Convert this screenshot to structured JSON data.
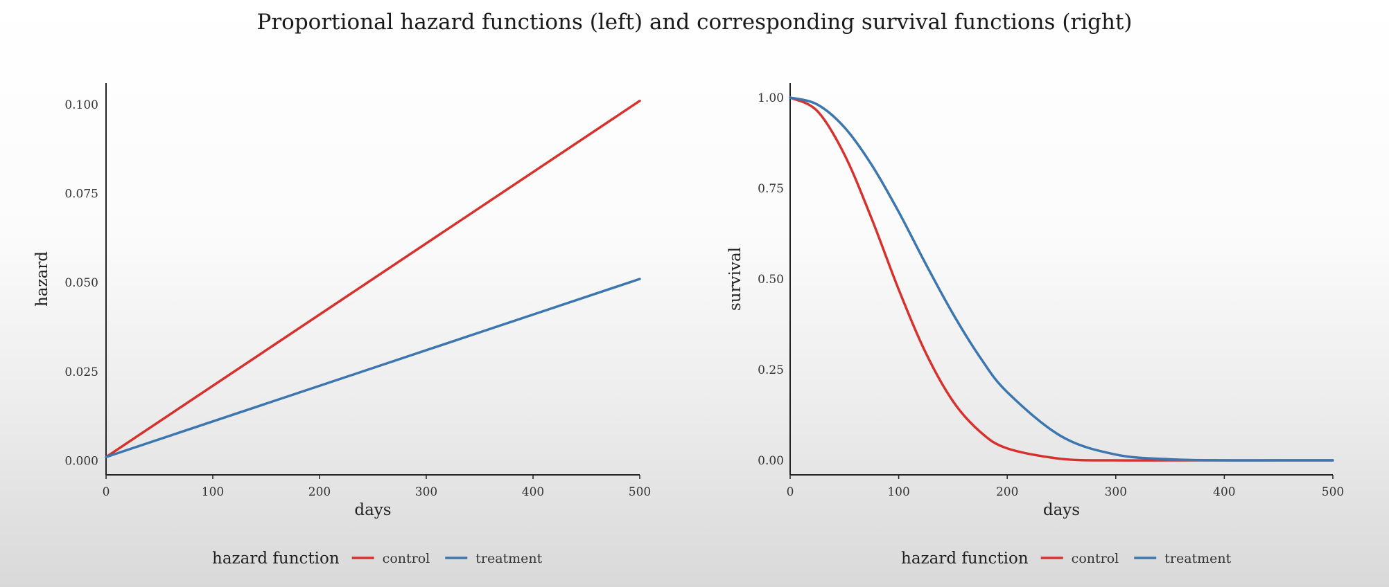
{
  "title": "Proportional hazard functions (left) and corresponding survival functions (right)",
  "colors": {
    "control": "#d7312e",
    "treatment": "#3b76b0",
    "axis": "#222222"
  },
  "chart_data": [
    {
      "type": "line",
      "xlabel": "days",
      "ylabel": "hazard",
      "xlim": [
        0,
        500
      ],
      "ylim": [
        -0.004,
        0.106
      ],
      "xticks": [
        0,
        100,
        200,
        300,
        400,
        500
      ],
      "xtick_labels": [
        "0",
        "100",
        "200",
        "300",
        "400",
        "500"
      ],
      "yticks": [
        0,
        0.025,
        0.05,
        0.075,
        0.1
      ],
      "ytick_labels": [
        "0.000",
        "0.025",
        "0.050",
        "0.075",
        "0.100"
      ],
      "grid": false,
      "legend_position": "bottom",
      "legend_title": "hazard function",
      "series": [
        {
          "name": "control",
          "x": [
            0,
            500
          ],
          "y": [
            0.001,
            0.101
          ]
        },
        {
          "name": "treatment",
          "x": [
            0,
            500
          ],
          "y": [
            0.001,
            0.051
          ]
        }
      ]
    },
    {
      "type": "line",
      "xlabel": "days",
      "ylabel": "survival",
      "xlim": [
        0,
        500
      ],
      "ylim": [
        -0.04,
        1.04
      ],
      "xticks": [
        0,
        100,
        200,
        300,
        400,
        500
      ],
      "xtick_labels": [
        "0",
        "100",
        "200",
        "300",
        "400",
        "500"
      ],
      "yticks": [
        0,
        0.25,
        0.5,
        0.75,
        1.0
      ],
      "ytick_labels": [
        "0.00",
        "0.25",
        "0.50",
        "0.75",
        "1.00"
      ],
      "grid": false,
      "legend_position": "bottom",
      "legend_title": "hazard function",
      "series": [
        {
          "name": "control",
          "x": [
            0,
            25,
            50,
            75,
            100,
            125,
            150,
            175,
            200,
            250,
            300,
            350,
            400,
            450,
            500
          ],
          "y": [
            1.0,
            0.963,
            0.843,
            0.667,
            0.471,
            0.296,
            0.163,
            0.079,
            0.033,
            0.004,
            0.0,
            0.0,
            0.0,
            0.0,
            0.0
          ]
        },
        {
          "name": "treatment",
          "x": [
            0,
            25,
            50,
            75,
            100,
            125,
            150,
            175,
            200,
            250,
            300,
            350,
            400,
            450,
            500
          ],
          "y": [
            1.0,
            0.981,
            0.918,
            0.815,
            0.685,
            0.541,
            0.404,
            0.284,
            0.188,
            0.066,
            0.016,
            0.003,
            0.0,
            0.0,
            0.0
          ]
        }
      ]
    }
  ]
}
